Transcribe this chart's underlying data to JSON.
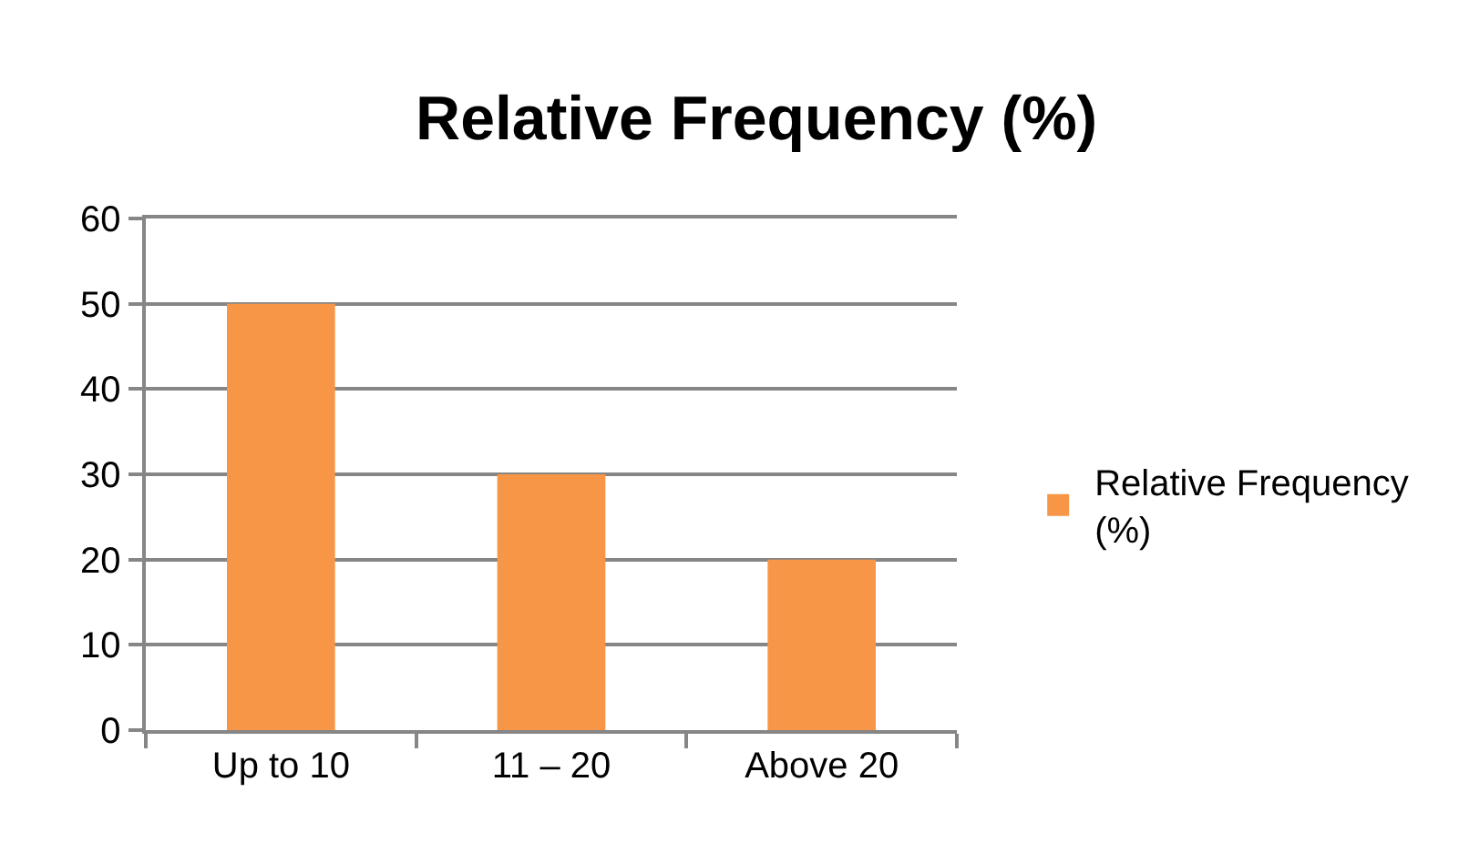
{
  "chart_data": {
    "type": "bar",
    "title": "Relative Frequency (%)",
    "categories": [
      "Up to 10",
      "11 – 20",
      "Above 20"
    ],
    "series": [
      {
        "name": "Relative Frequency (%)",
        "color": "#f79646",
        "values": [
          50,
          30,
          20
        ]
      }
    ],
    "ylim": [
      0,
      60
    ],
    "yticks": [
      0,
      10,
      20,
      30,
      40,
      50,
      60
    ],
    "grid": "y",
    "legend": "right"
  }
}
